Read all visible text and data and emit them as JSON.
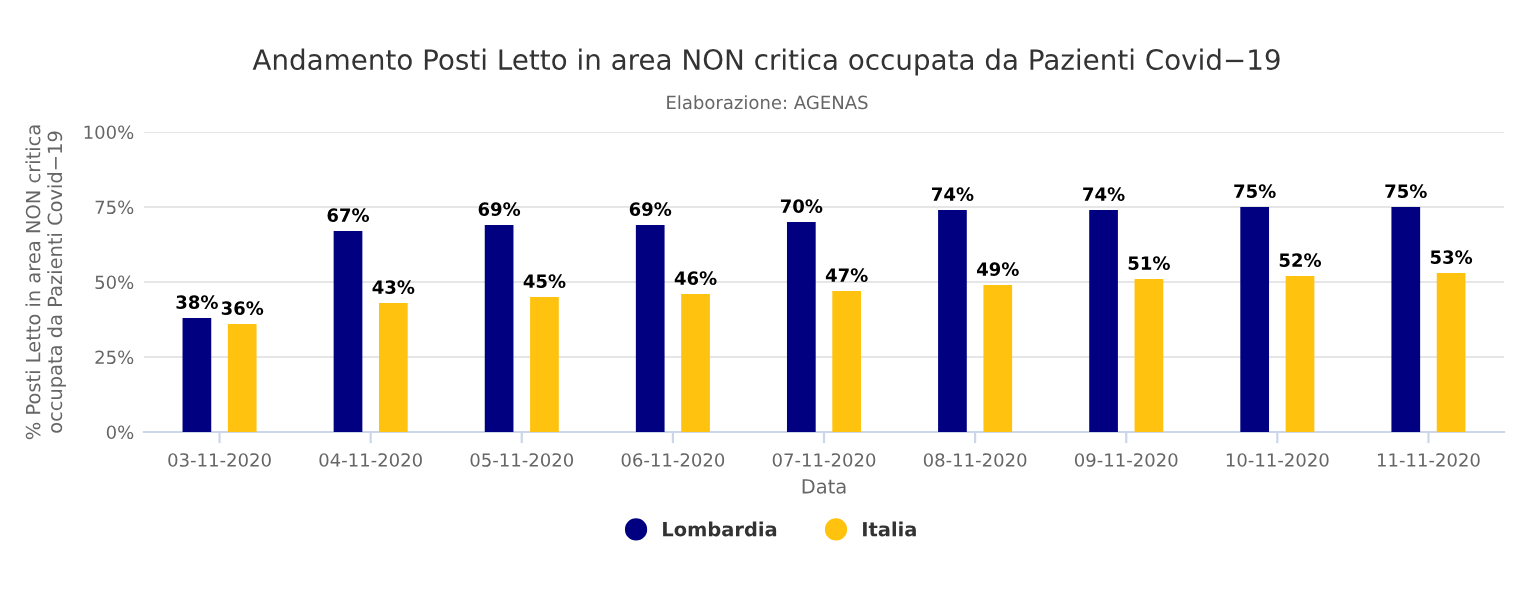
{
  "chart_data": {
    "type": "bar",
    "title": "Andamento Posti Letto in area NON critica occupata da Pazienti Covid−19",
    "subtitle": "Elaborazione: AGENAS",
    "xlabel": "Data",
    "ylabel": "% Posti Letto in area NON critica\noccupata da Pazienti Covid−19",
    "categories": [
      "03-11-2020",
      "04-11-2020",
      "05-11-2020",
      "06-11-2020",
      "07-11-2020",
      "08-11-2020",
      "09-11-2020",
      "10-11-2020",
      "11-11-2020"
    ],
    "series": [
      {
        "name": "Lombardia",
        "color": "#000080",
        "values": [
          38,
          67,
          69,
          69,
          70,
          74,
          74,
          75,
          75
        ],
        "value_labels": [
          "38%",
          "67%",
          "69%",
          "69%",
          "70%",
          "74%",
          "74%",
          "75%",
          "75%"
        ]
      },
      {
        "name": "Italia",
        "color": "#ffc20e",
        "values": [
          36,
          43,
          45,
          46,
          47,
          49,
          51,
          52,
          53
        ],
        "value_labels": [
          "36%",
          "43%",
          "45%",
          "46%",
          "47%",
          "49%",
          "51%",
          "52%",
          "53%"
        ]
      }
    ],
    "ylim": [
      0,
      100
    ],
    "yticks": [
      {
        "value": 0,
        "label": "0%"
      },
      {
        "value": 25,
        "label": "25%"
      },
      {
        "value": 50,
        "label": "50%"
      },
      {
        "value": 75,
        "label": "75%"
      },
      {
        "value": 100,
        "label": "100%"
      }
    ],
    "grid": "y",
    "legend": "bottom"
  }
}
